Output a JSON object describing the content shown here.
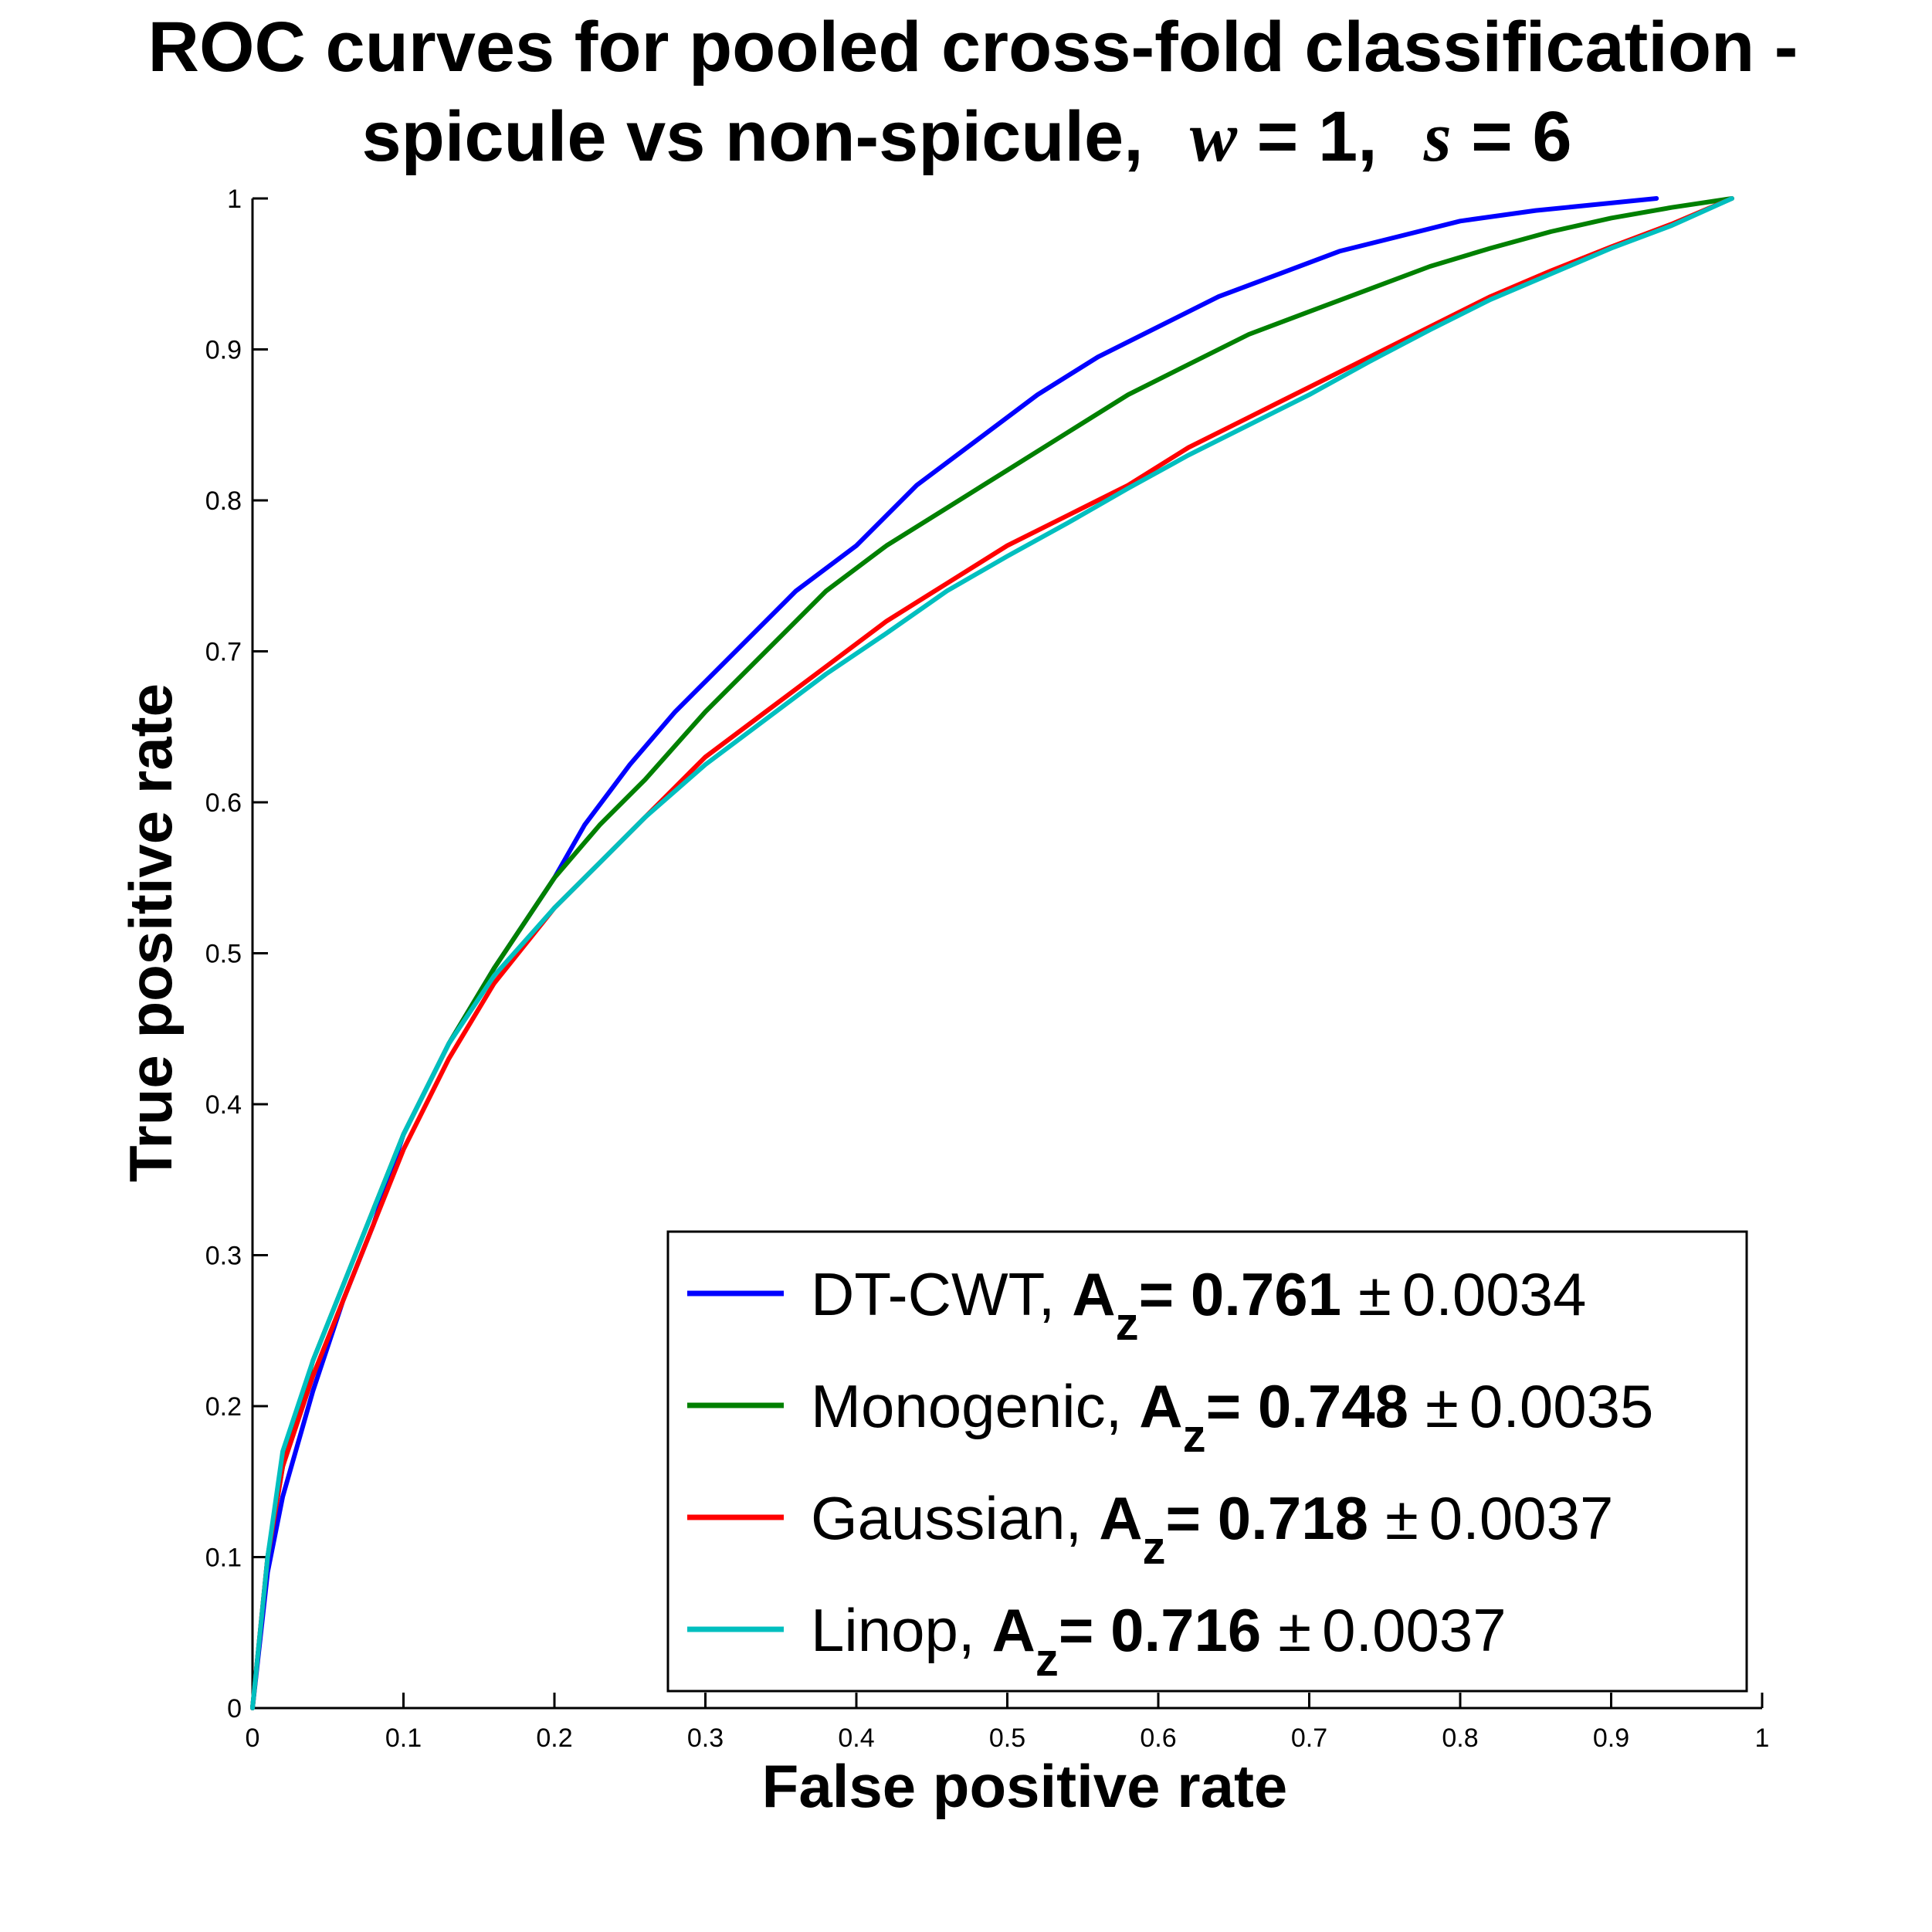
{
  "chart_data": {
    "type": "line",
    "title_line1": "ROC curves for pooled cross-fold classification -",
    "title_line2_prefix": "spicule vs non-spicule,",
    "title_w_symbol": "w",
    "title_w_value": " = 1,",
    "title_s_symbol": "s",
    "title_s_value": " = 6",
    "xlabel": "False positive rate",
    "ylabel": "True positive rate",
    "xlim": [
      0,
      1
    ],
    "ylim": [
      0,
      1
    ],
    "xticks": [
      "0",
      "0.1",
      "0.2",
      "0.3",
      "0.4",
      "0.5",
      "0.6",
      "0.7",
      "0.8",
      "0.9",
      "1"
    ],
    "yticks": [
      "0",
      "0.1",
      "0.2",
      "0.3",
      "0.4",
      "0.5",
      "0.6",
      "0.7",
      "0.8",
      "0.9",
      "1"
    ],
    "grid": false,
    "legend_position": "bottom-right",
    "series": [
      {
        "name": "DT-CWT,",
        "color": "#0000ff",
        "az_label": "A",
        "az_sub": "z",
        "az_value": "= 0.761",
        "pm": "±",
        "std": "0.0034",
        "x": [
          0,
          0.01,
          0.02,
          0.04,
          0.06,
          0.08,
          0.1,
          0.13,
          0.16,
          0.2,
          0.22,
          0.25,
          0.28,
          0.3,
          0.33,
          0.36,
          0.4,
          0.44,
          0.48,
          0.52,
          0.56,
          0.6,
          0.64,
          0.68,
          0.72,
          0.76,
          0.8,
          0.85,
          0.9,
          0.93
        ],
        "y": [
          0,
          0.09,
          0.14,
          0.21,
          0.27,
          0.32,
          0.38,
          0.44,
          0.49,
          0.55,
          0.585,
          0.625,
          0.66,
          0.68,
          0.71,
          0.74,
          0.77,
          0.81,
          0.84,
          0.87,
          0.895,
          0.915,
          0.935,
          0.95,
          0.965,
          0.975,
          0.985,
          0.992,
          0.997,
          1.0
        ]
      },
      {
        "name": "Monogenic,",
        "color": "#008000",
        "az_label": "A",
        "az_sub": "z",
        "az_value": "= 0.748",
        "pm": "±",
        "std": "0.0035",
        "x": [
          0,
          0.01,
          0.02,
          0.04,
          0.06,
          0.08,
          0.1,
          0.13,
          0.16,
          0.2,
          0.23,
          0.26,
          0.3,
          0.34,
          0.38,
          0.42,
          0.46,
          0.5,
          0.54,
          0.58,
          0.62,
          0.66,
          0.7,
          0.74,
          0.78,
          0.82,
          0.86,
          0.9,
          0.94,
          0.98
        ],
        "y": [
          0,
          0.1,
          0.16,
          0.23,
          0.28,
          0.33,
          0.38,
          0.44,
          0.49,
          0.55,
          0.585,
          0.615,
          0.66,
          0.7,
          0.74,
          0.77,
          0.795,
          0.82,
          0.845,
          0.87,
          0.89,
          0.91,
          0.925,
          0.94,
          0.955,
          0.967,
          0.978,
          0.987,
          0.994,
          1.0
        ]
      },
      {
        "name": "Gaussian,",
        "color": "#ff0000",
        "az_label": "A",
        "az_sub": "z",
        "az_value": "= 0.718",
        "pm": "±",
        "std": "0.0037",
        "x": [
          0,
          0.01,
          0.02,
          0.04,
          0.06,
          0.08,
          0.1,
          0.13,
          0.16,
          0.2,
          0.23,
          0.26,
          0.3,
          0.34,
          0.38,
          0.42,
          0.46,
          0.5,
          0.54,
          0.58,
          0.62,
          0.66,
          0.7,
          0.74,
          0.78,
          0.82,
          0.86,
          0.9,
          0.94,
          0.98
        ],
        "y": [
          0,
          0.1,
          0.16,
          0.22,
          0.27,
          0.32,
          0.37,
          0.43,
          0.48,
          0.53,
          0.56,
          0.59,
          0.63,
          0.66,
          0.69,
          0.72,
          0.745,
          0.77,
          0.79,
          0.81,
          0.835,
          0.855,
          0.875,
          0.895,
          0.915,
          0.935,
          0.952,
          0.968,
          0.983,
          1.0
        ]
      },
      {
        "name": "Linop,",
        "color": "#00bfbf",
        "az_label": "A",
        "az_sub": "z",
        "az_value": "= 0.716",
        "pm": "±",
        "std": "0.0037",
        "x": [
          0,
          0.01,
          0.02,
          0.04,
          0.06,
          0.08,
          0.1,
          0.13,
          0.16,
          0.2,
          0.23,
          0.26,
          0.3,
          0.34,
          0.38,
          0.42,
          0.46,
          0.5,
          0.54,
          0.58,
          0.62,
          0.66,
          0.7,
          0.74,
          0.78,
          0.82,
          0.86,
          0.9,
          0.94,
          0.98
        ],
        "y": [
          0,
          0.1,
          0.17,
          0.23,
          0.28,
          0.33,
          0.38,
          0.44,
          0.485,
          0.53,
          0.56,
          0.59,
          0.625,
          0.655,
          0.685,
          0.712,
          0.74,
          0.763,
          0.785,
          0.808,
          0.83,
          0.85,
          0.87,
          0.892,
          0.913,
          0.933,
          0.95,
          0.967,
          0.982,
          1.0
        ]
      }
    ]
  }
}
